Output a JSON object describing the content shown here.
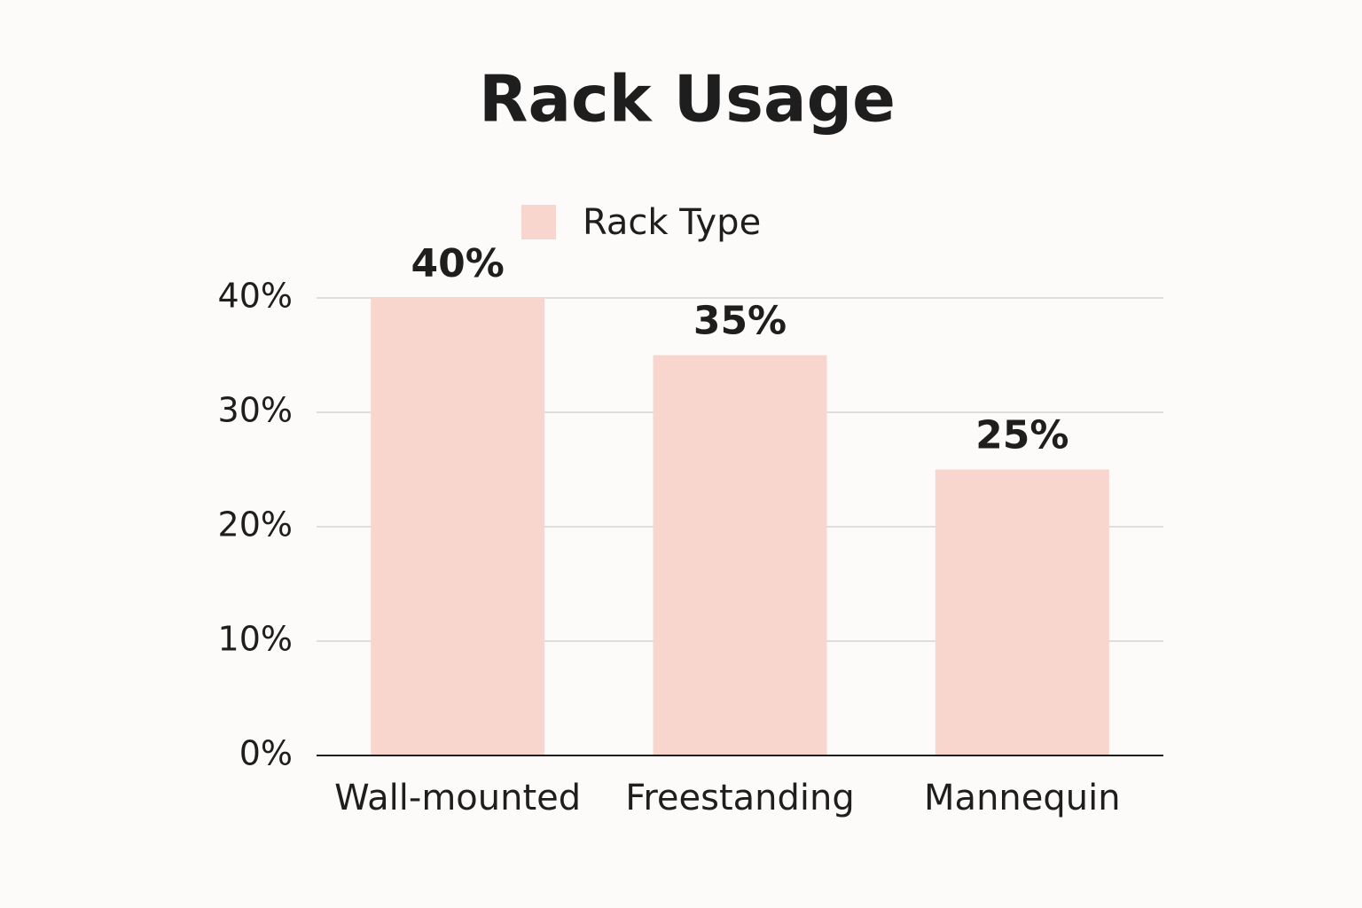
{
  "chart_data": {
    "type": "bar",
    "title": "Rack Usage",
    "categories": [
      "Wall-mounted",
      "Freestanding",
      "Mannequin"
    ],
    "series": [
      {
        "name": "Rack Type",
        "color": "#f9d6cd",
        "values": [
          40,
          35,
          25
        ],
        "value_labels": [
          "40%",
          "35%",
          "25%"
        ]
      }
    ],
    "ylim": [
      0,
      40
    ],
    "yticks": [
      {
        "value": 0,
        "label": "0%"
      },
      {
        "value": 10,
        "label": "10%"
      },
      {
        "value": 20,
        "label": "20%"
      },
      {
        "value": 30,
        "label": "30%"
      },
      {
        "value": 40,
        "label": "40%"
      }
    ],
    "grid": true,
    "legend": "top"
  }
}
